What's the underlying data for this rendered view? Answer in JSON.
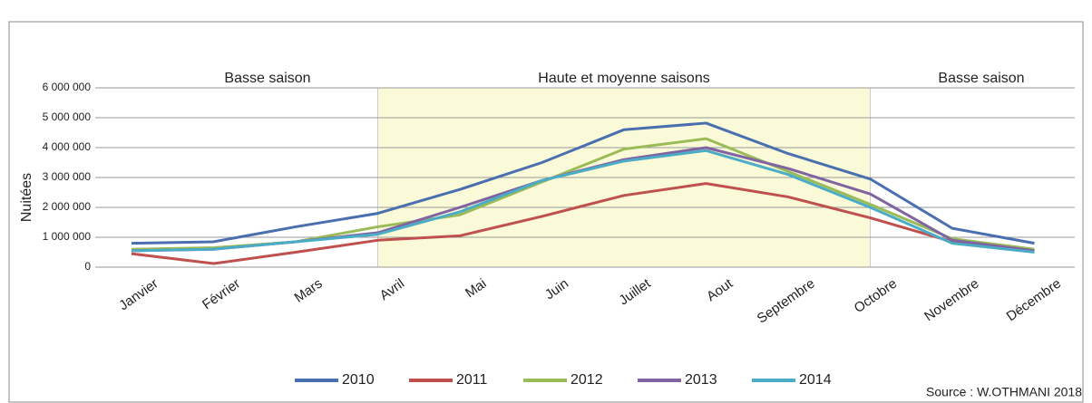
{
  "chart_data": {
    "type": "line",
    "y_label": "Nuitées",
    "categories": [
      "Janvier",
      "Février",
      "Mars",
      "Avril",
      "Mai",
      "Juin",
      "Juillet",
      "Aout",
      "Septembre",
      "Octobre",
      "Novembre",
      "Décembre"
    ],
    "series": [
      {
        "name": "2010",
        "color": "#4a6fb0",
        "values": [
          800000,
          850000,
          1350000,
          1800000,
          2600000,
          3500000,
          4600000,
          4820000,
          3800000,
          2950000,
          1300000,
          800000
        ]
      },
      {
        "name": "2011",
        "color": "#c0504d",
        "values": [
          450000,
          120000,
          500000,
          900000,
          1050000,
          1700000,
          2400000,
          2800000,
          2350000,
          1650000,
          850000,
          550000
        ]
      },
      {
        "name": "2012",
        "color": "#9bbb59",
        "values": [
          600000,
          650000,
          850000,
          1350000,
          1750000,
          2850000,
          3950000,
          4300000,
          3200000,
          2100000,
          950000,
          600000
        ]
      },
      {
        "name": "2013",
        "color": "#8064a2",
        "values": [
          550000,
          600000,
          850000,
          1150000,
          2000000,
          2900000,
          3600000,
          4000000,
          3300000,
          2450000,
          900000,
          550000
        ]
      },
      {
        "name": "2014",
        "color": "#4bacc6",
        "values": [
          550000,
          600000,
          850000,
          1100000,
          1850000,
          2900000,
          3550000,
          3900000,
          3100000,
          2000000,
          800000,
          500000
        ]
      }
    ],
    "ylim": [
      0,
      6000000
    ],
    "yticks": [
      0,
      {
        "value": 1000000,
        "label": "1 000 000"
      },
      {
        "value": 2000000,
        "label": "2 000 000"
      },
      {
        "value": 3000000,
        "label": "3 000 000"
      },
      {
        "value": 4000000,
        "label": "4 000 000"
      },
      {
        "value": 5000000,
        "label": "5 000 000"
      },
      {
        "value": 6000000,
        "label": "6 000 000"
      }
    ],
    "grid": true,
    "shaded_categories": [
      3,
      9
    ],
    "shade_color": "#fafad8",
    "annotations": [
      "Basse saison",
      "Haute et moyenne saisons",
      "Basse saison"
    ],
    "legend": "bottom",
    "source": "Source : W.OTHMANI 2018"
  }
}
